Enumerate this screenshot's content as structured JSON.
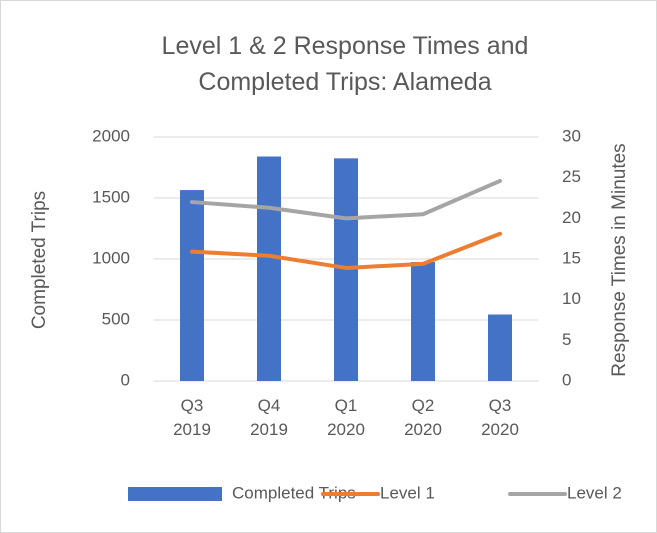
{
  "chart_data": {
    "type": "bar_line",
    "title": "Level 1 & 2 Response Times and Completed Trips: Alameda",
    "y_label": "Completed Trips",
    "y2_label": "Response Times in Minutes",
    "categories": [
      "Q3 2019",
      "Q4 2019",
      "Q1 2020",
      "Q2 2020",
      "Q3 2020"
    ],
    "series": [
      {
        "name": "Completed Trips",
        "type": "bar",
        "color": "#4472c4",
        "values": [
          1565,
          1840,
          1825,
          975,
          545
        ]
      },
      {
        "name": "Level 1",
        "type": "line",
        "axis": "y2",
        "color": "#ed7d31",
        "values": [
          15.9,
          15.4,
          13.9,
          14.4,
          18.1
        ]
      },
      {
        "name": "Level 2",
        "type": "line",
        "axis": "y2",
        "color": "#a5a5a5",
        "values": [
          22.0,
          21.3,
          20.0,
          20.5,
          24.6
        ]
      }
    ],
    "ylim": [
      0,
      2000
    ],
    "yticks": [
      0,
      500,
      1000,
      1500,
      2000
    ],
    "y2lim": [
      0,
      30
    ],
    "y2ticks": [
      0,
      5,
      10,
      15,
      20,
      25,
      30
    ],
    "grid": true,
    "legend": "bottom"
  }
}
